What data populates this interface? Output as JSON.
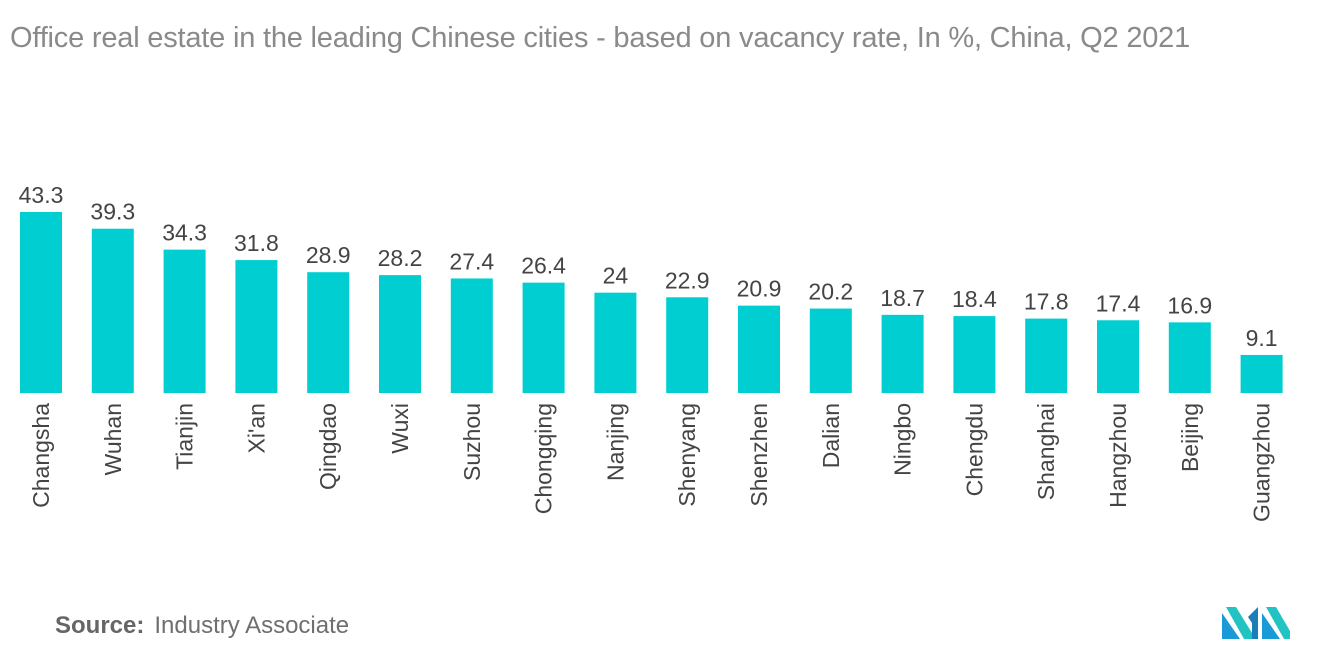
{
  "title": "Office real estate in the leading Chinese cities - based on vacancy rate, In %, China, Q2 2021",
  "source": {
    "label": "Source:",
    "text": "Industry Associate"
  },
  "colors": {
    "bar": "#00CED1",
    "text": "#444444",
    "title": "#8a8a8a"
  },
  "chart_data": {
    "type": "bar",
    "title": "Office real estate in the leading Chinese cities - based on vacancy rate, In %, China, Q2 2021",
    "categories": [
      "Changsha",
      "Wuhan",
      "Tianjin",
      "Xi'an",
      "Qingdao",
      "Wuxi",
      "Suzhou",
      "Chongqing",
      "Nanjing",
      "Shenyang",
      "Shenzhen",
      "Dalian",
      "Ningbo",
      "Chengdu",
      "Shanghai",
      "Hangzhou",
      "Beijing",
      "Guangzhou"
    ],
    "values": [
      43.3,
      39.3,
      34.3,
      31.8,
      28.9,
      28.2,
      27.4,
      26.4,
      24,
      22.9,
      20.9,
      20.2,
      18.7,
      18.4,
      17.8,
      17.4,
      16.9,
      9.1
    ],
    "value_labels": [
      "43.3",
      "39.3",
      "34.3",
      "31.8",
      "28.9",
      "28.2",
      "27.4",
      "26.4",
      "24",
      "22.9",
      "20.9",
      "20.2",
      "18.7",
      "18.4",
      "17.8",
      "17.4",
      "16.9",
      "9.1"
    ],
    "xlabel": "",
    "ylabel": "",
    "ylim": [
      0,
      43.3
    ],
    "grid": false,
    "legend": "none"
  }
}
